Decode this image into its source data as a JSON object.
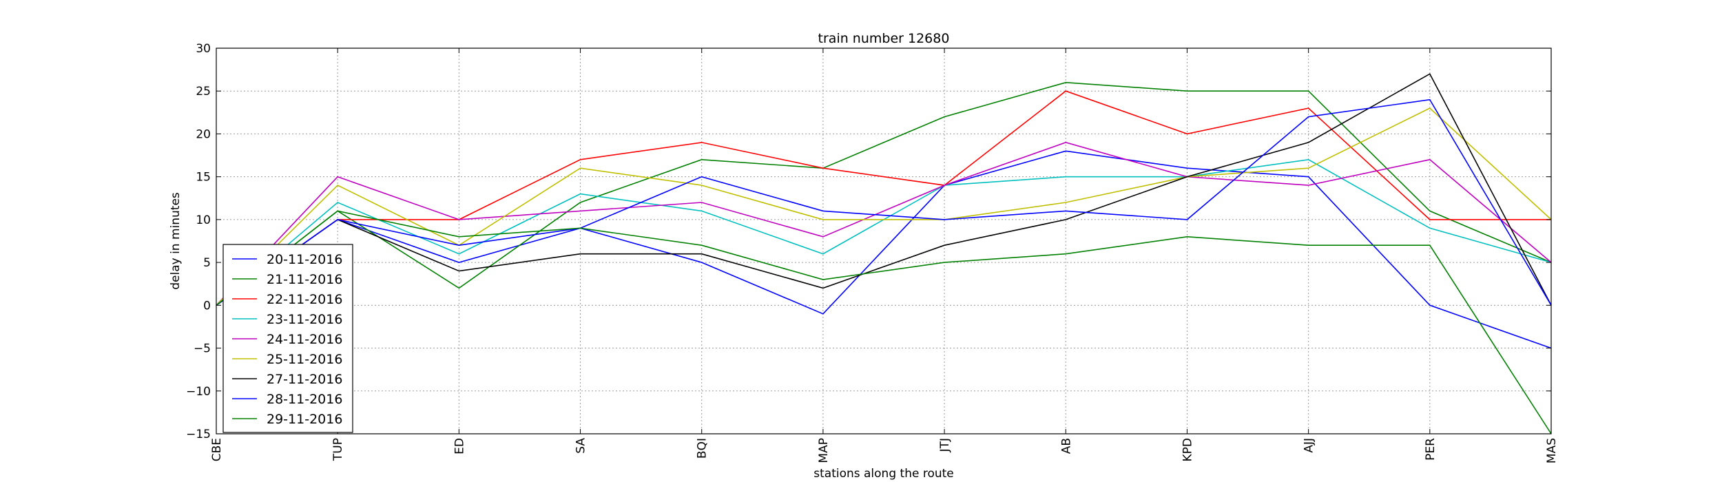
{
  "chart_data": {
    "type": "line",
    "title": "train number 12680",
    "xlabel": "stations along the route",
    "ylabel": "delay in minutes",
    "categories": [
      "CBE",
      "TUP",
      "ED",
      "SA",
      "BQI",
      "MAP",
      "JTJ",
      "AB",
      "KPD",
      "AJJ",
      "PER",
      "MAS"
    ],
    "ylim": [
      -15,
      30
    ],
    "yticks": [
      -15,
      -10,
      -5,
      0,
      5,
      10,
      15,
      20,
      25,
      30
    ],
    "grid": true,
    "legend_position": "lower-left",
    "series": [
      {
        "name": "20-11-2016",
        "color": "#0000ff",
        "values": [
          0,
          10,
          5,
          9,
          5,
          -1,
          14,
          18,
          16,
          15,
          0,
          -5
        ]
      },
      {
        "name": "21-11-2016",
        "color": "#008000",
        "values": [
          0,
          11,
          2,
          12,
          17,
          16,
          22,
          26,
          25,
          25,
          11,
          5
        ]
      },
      {
        "name": "22-11-2016",
        "color": "#ff0000",
        "values": [
          0,
          10,
          10,
          17,
          19,
          16,
          14,
          25,
          20,
          23,
          10,
          10
        ]
      },
      {
        "name": "23-11-2016",
        "color": "#00bfbf",
        "values": [
          0,
          12,
          6,
          13,
          11,
          6,
          14,
          15,
          15,
          17,
          9,
          5
        ]
      },
      {
        "name": "24-11-2016",
        "color": "#bf00bf",
        "values": [
          0,
          15,
          10,
          11,
          12,
          8,
          14,
          19,
          15,
          14,
          17,
          5
        ]
      },
      {
        "name": "25-11-2016",
        "color": "#bfbf00",
        "values": [
          0,
          14,
          7,
          16,
          14,
          10,
          10,
          12,
          15,
          16,
          23,
          10
        ]
      },
      {
        "name": "27-11-2016",
        "color": "#000000",
        "values": [
          0,
          10,
          4,
          6,
          6,
          2,
          7,
          10,
          15,
          19,
          27,
          0
        ]
      },
      {
        "name": "28-11-2016",
        "color": "#0000ff",
        "values": [
          0,
          10,
          7,
          9,
          15,
          11,
          10,
          11,
          10,
          22,
          24,
          0
        ]
      },
      {
        "name": "29-11-2016",
        "color": "#008000",
        "values": [
          0,
          11,
          8,
          9,
          7,
          3,
          5,
          6,
          8,
          7,
          7,
          -15
        ]
      }
    ]
  }
}
